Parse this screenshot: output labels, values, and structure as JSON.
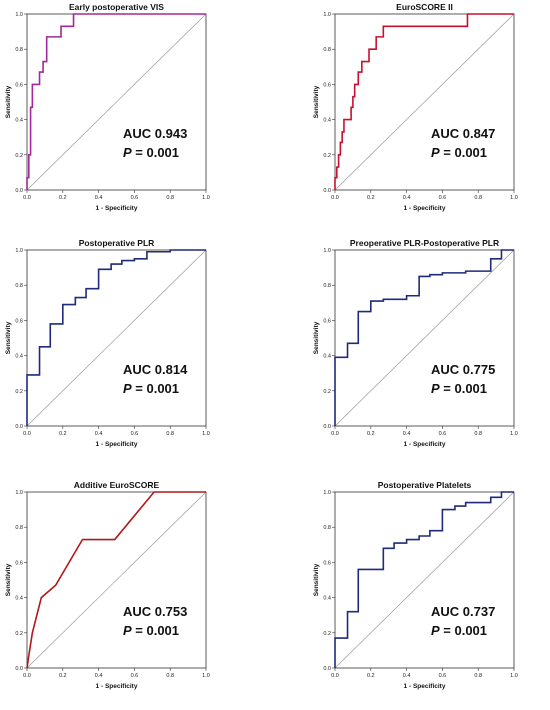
{
  "chart_data": [
    {
      "type": "line",
      "title": "Early postoperative VIS",
      "xlabel": "1 - Specificity",
      "ylabel": "Sensitivity",
      "xlim": [
        0,
        1
      ],
      "ylim": [
        0,
        1
      ],
      "xticks": [
        "0.0",
        "0.2",
        "0.4",
        "0.6",
        "0.8",
        "1.0"
      ],
      "yticks": [
        "0.0",
        "0.2",
        "0.4",
        "0.6",
        "0.8",
        "1.0"
      ],
      "grid": false,
      "color": "#a0289b",
      "auc_text": "AUC 0.943",
      "p_label": "P",
      "p_text": " = 0.001",
      "series": [
        {
          "x": [
            0,
            0,
            0.01,
            0.01,
            0.02,
            0.02,
            0.03,
            0.03,
            0.05,
            0.05,
            0.07,
            0.07,
            0.09,
            0.09,
            0.11,
            0.11,
            0.15,
            0.15,
            0.19,
            0.19,
            0.22,
            0.22,
            0.26,
            0.26,
            1.0
          ],
          "y": [
            0,
            0.07,
            0.07,
            0.2,
            0.2,
            0.47,
            0.47,
            0.6,
            0.6,
            0.6,
            0.6,
            0.67,
            0.67,
            0.73,
            0.73,
            0.87,
            0.87,
            0.87,
            0.87,
            0.93,
            0.93,
            0.93,
            0.93,
            1.0,
            1.0
          ]
        }
      ]
    },
    {
      "type": "line",
      "title": "EuroSCORE II",
      "xlabel": "1 - Specificity",
      "ylabel": "Sensitivity",
      "xlim": [
        0,
        1
      ],
      "ylim": [
        0,
        1
      ],
      "xticks": [
        "0.0",
        "0.2",
        "0.4",
        "0.6",
        "0.8",
        "1.0"
      ],
      "yticks": [
        "0.0",
        "0.2",
        "0.4",
        "0.6",
        "0.8",
        "1.0"
      ],
      "grid": false,
      "color": "#c8102e",
      "auc_text": "AUC 0.847",
      "p_label": "P",
      "p_text": " = 0.001",
      "series": [
        {
          "x": [
            0,
            0,
            0.01,
            0.01,
            0.02,
            0.02,
            0.03,
            0.03,
            0.04,
            0.04,
            0.05,
            0.05,
            0.06,
            0.06,
            0.09,
            0.09,
            0.1,
            0.1,
            0.11,
            0.11,
            0.13,
            0.13,
            0.15,
            0.15,
            0.19,
            0.19,
            0.23,
            0.23,
            0.27,
            0.27,
            0.74,
            0.74,
            1.0
          ],
          "y": [
            0,
            0.07,
            0.07,
            0.13,
            0.13,
            0.2,
            0.2,
            0.27,
            0.27,
            0.33,
            0.33,
            0.4,
            0.4,
            0.4,
            0.4,
            0.47,
            0.47,
            0.53,
            0.53,
            0.6,
            0.6,
            0.67,
            0.67,
            0.73,
            0.73,
            0.8,
            0.8,
            0.87,
            0.87,
            0.93,
            0.93,
            1.0,
            1.0
          ]
        }
      ]
    },
    {
      "type": "line",
      "title": "Postoperative PLR",
      "xlabel": "1 - Specificity",
      "ylabel": "Sensitivity",
      "xlim": [
        0,
        1
      ],
      "ylim": [
        0,
        1
      ],
      "xticks": [
        "0.0",
        "0.2",
        "0.4",
        "0.6",
        "0.8",
        "1.0"
      ],
      "yticks": [
        "0.0",
        "0.2",
        "0.4",
        "0.6",
        "0.8",
        "1.0"
      ],
      "grid": false,
      "color": "#1f2a7a",
      "auc_text": "AUC 0.814",
      "p_label": "P",
      "p_text": " = 0.001",
      "series": [
        {
          "x": [
            0,
            0,
            0.07,
            0.07,
            0.13,
            0.13,
            0.2,
            0.2,
            0.27,
            0.27,
            0.33,
            0.33,
            0.4,
            0.4,
            0.47,
            0.47,
            0.53,
            0.53,
            0.6,
            0.6,
            0.67,
            0.67,
            0.8,
            0.8,
            0.9,
            1.0
          ],
          "y": [
            0,
            0.29,
            0.29,
            0.45,
            0.45,
            0.58,
            0.58,
            0.69,
            0.69,
            0.73,
            0.73,
            0.78,
            0.78,
            0.89,
            0.89,
            0.92,
            0.92,
            0.94,
            0.94,
            0.95,
            0.95,
            0.99,
            0.99,
            1.0,
            1.0,
            1.0
          ]
        }
      ]
    },
    {
      "type": "line",
      "title": "Preoperative PLR-Postoperative PLR",
      "xlabel": "1 - Specificity",
      "ylabel": "Sensitivity",
      "xlim": [
        0,
        1
      ],
      "ylim": [
        0,
        1
      ],
      "xticks": [
        "0.0",
        "0.2",
        "0.4",
        "0.6",
        "0.8",
        "1.0"
      ],
      "yticks": [
        "0.0",
        "0.2",
        "0.4",
        "0.6",
        "0.8",
        "1.0"
      ],
      "grid": false,
      "color": "#1f2a7a",
      "auc_text": "AUC 0.775",
      "p_label": "P",
      "p_text": " = 0.001",
      "series": [
        {
          "x": [
            0,
            0,
            0.07,
            0.07,
            0.13,
            0.13,
            0.2,
            0.2,
            0.27,
            0.27,
            0.4,
            0.4,
            0.47,
            0.47,
            0.53,
            0.53,
            0.6,
            0.6,
            0.73,
            0.73,
            0.87,
            0.87,
            0.93,
            0.93,
            1.0
          ],
          "y": [
            0,
            0.39,
            0.39,
            0.47,
            0.47,
            0.65,
            0.65,
            0.71,
            0.71,
            0.72,
            0.72,
            0.74,
            0.74,
            0.85,
            0.85,
            0.86,
            0.86,
            0.87,
            0.87,
            0.88,
            0.88,
            0.95,
            0.95,
            1.0,
            1.0
          ]
        }
      ]
    },
    {
      "type": "line",
      "title": "Additive EuroSCORE",
      "xlabel": "1 - Specificity",
      "ylabel": "Sensitivity",
      "xlim": [
        0,
        1
      ],
      "ylim": [
        0,
        1
      ],
      "xticks": [
        "0.0",
        "0.2",
        "0.4",
        "0.6",
        "0.8",
        "1.0"
      ],
      "yticks": [
        "0.0",
        "0.2",
        "0.4",
        "0.6",
        "0.8",
        "1.0"
      ],
      "grid": false,
      "color": "#b01818",
      "auc_text": "AUC 0.753",
      "p_label": "P",
      "p_text": " = 0.001",
      "series": [
        {
          "x": [
            0,
            0.01,
            0.03,
            0.08,
            0.16,
            0.31,
            0.49,
            0.71,
            1.0
          ],
          "y": [
            0,
            0.07,
            0.2,
            0.4,
            0.47,
            0.73,
            0.73,
            1.0,
            1.0
          ]
        }
      ]
    },
    {
      "type": "line",
      "title": "Postoperative Platelets",
      "xlabel": "1 - Specificity",
      "ylabel": "Sensitivity",
      "xlim": [
        0,
        1
      ],
      "ylim": [
        0,
        1
      ],
      "xticks": [
        "0.0",
        "0.2",
        "0.4",
        "0.6",
        "0.8",
        "1.0"
      ],
      "yticks": [
        "0.0",
        "0.2",
        "0.4",
        "0.6",
        "0.8",
        "1.0"
      ],
      "grid": false,
      "color": "#1f2a7a",
      "auc_text": "AUC 0.737",
      "p_label": "P",
      "p_text": " = 0.001",
      "series": [
        {
          "x": [
            0,
            0,
            0.07,
            0.07,
            0.13,
            0.13,
            0.27,
            0.27,
            0.33,
            0.33,
            0.4,
            0.4,
            0.47,
            0.47,
            0.53,
            0.53,
            0.6,
            0.6,
            0.67,
            0.67,
            0.73,
            0.73,
            0.87,
            0.87,
            0.93,
            0.93,
            1.0
          ],
          "y": [
            0,
            0.17,
            0.17,
            0.32,
            0.32,
            0.56,
            0.56,
            0.68,
            0.68,
            0.71,
            0.71,
            0.73,
            0.73,
            0.75,
            0.75,
            0.78,
            0.78,
            0.9,
            0.9,
            0.92,
            0.92,
            0.94,
            0.94,
            0.97,
            0.97,
            1.0,
            1.0
          ]
        }
      ]
    }
  ]
}
